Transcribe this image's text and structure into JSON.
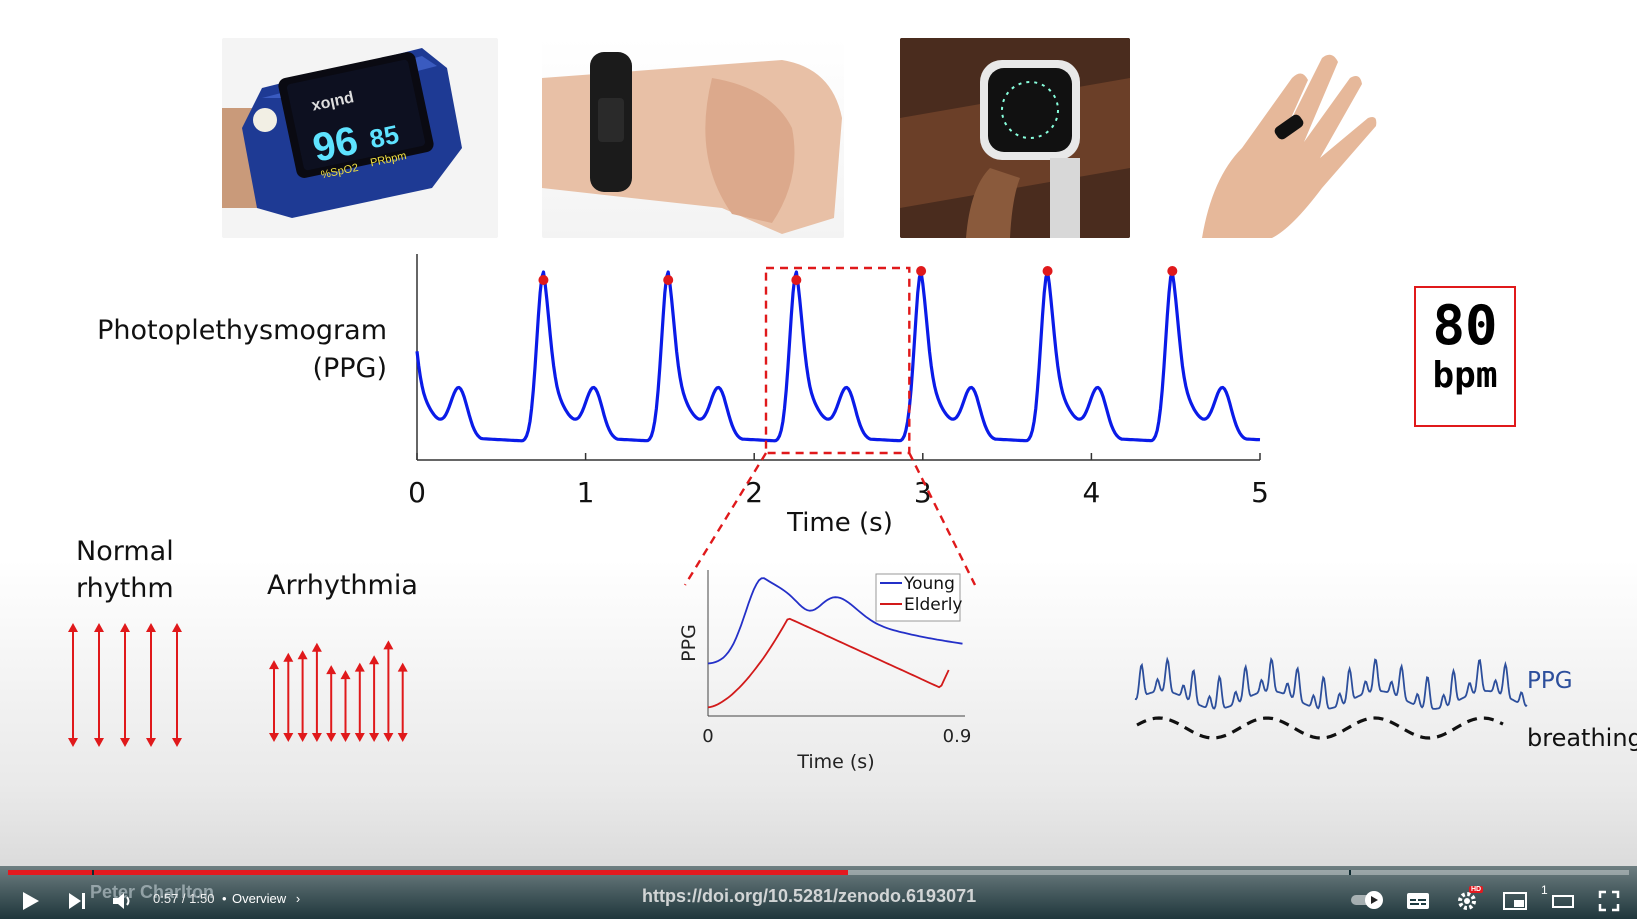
{
  "slide": {
    "photos": [
      "pulse-oximeter",
      "wrist-band",
      "smartwatch",
      "smart-ring"
    ],
    "oximeter": {
      "brand": "pulox",
      "spo2": "96",
      "pr": "85",
      "spo2_label": "%SpO2",
      "pr_label": "PRbpm"
    },
    "ppg_label_line1": "Photoplethysmogram",
    "ppg_label_line2": "(PPG)",
    "bpm_value": "80",
    "bpm_unit": "bpm",
    "normal_label_line1": "Normal",
    "normal_label_line2": "rhythm",
    "arrhythmia_label": "Arrhythmia",
    "ppg_tag": "PPG",
    "breathing_tag": "breathing",
    "accent_red": "#e0191b",
    "signal_blue": "#0a1be8"
  },
  "chart_data": [
    {
      "type": "line",
      "name": "ppg-signal",
      "x_ticks": [
        "0",
        "1",
        "2",
        "3",
        "4",
        "5"
      ],
      "xlabel": "Time (s)",
      "xlim": [
        0,
        5
      ],
      "peaks_x": [
        0.75,
        1.49,
        2.25,
        2.99,
        3.74,
        4.48
      ],
      "highlight_window": [
        2.07,
        2.92
      ]
    },
    {
      "type": "line",
      "name": "pulse-shape-comparison",
      "xlabel": "Time (s)",
      "ylabel": "PPG",
      "x_ticks": [
        "0",
        "0.9"
      ],
      "xlim": [
        0,
        0.9
      ],
      "series": [
        {
          "name": "Young",
          "color": "#2430c8"
        },
        {
          "name": "Elderly",
          "color": "#d21a1a"
        }
      ]
    }
  ],
  "rhythm": {
    "normal_arrows": [
      1,
      1,
      1,
      1,
      1
    ],
    "arrhythmia_arrows": [
      0.66,
      0.72,
      0.74,
      0.8,
      0.62,
      0.58,
      0.64,
      0.7,
      0.82,
      0.64
    ]
  },
  "player": {
    "time": "0:57 / 1:50",
    "chapter": "Overview",
    "author": "Peter Charlton",
    "doi": "https://doi.org/10.5281/zenodo.6193071",
    "progress": 0.518,
    "speed_badge": "1",
    "hd_badge": "HD",
    "icons": [
      "play-icon",
      "next-icon",
      "volume-icon",
      "autoplay-toggle",
      "captions-icon",
      "settings-icon",
      "miniplayer-icon",
      "theater-icon",
      "fullscreen-icon"
    ]
  }
}
